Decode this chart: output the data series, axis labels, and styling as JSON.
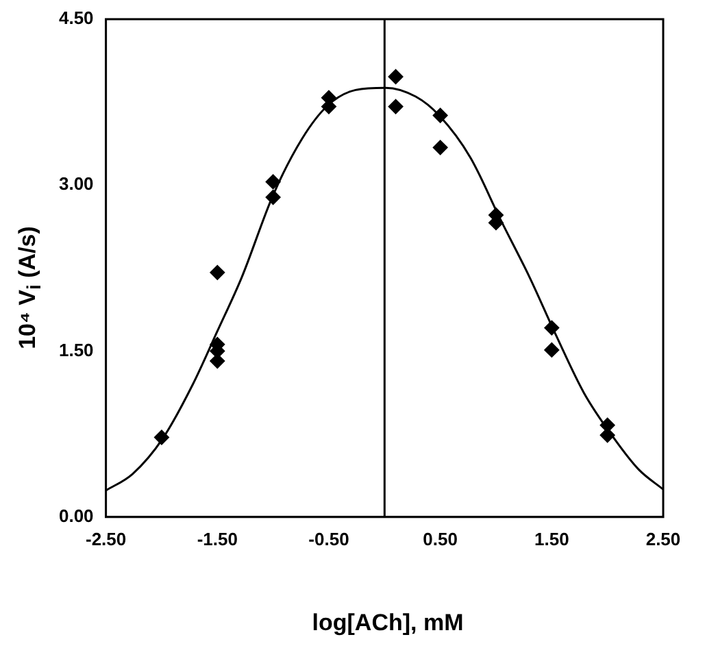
{
  "chart_data": {
    "type": "scatter",
    "xlabel": "log[ACh], mM",
    "ylabel": "10⁴ V$_{i}$ (A/s)",
    "xlim": [
      -2.5,
      2.5
    ],
    "ylim": [
      0,
      4.5
    ],
    "xticks": [
      {
        "value": -2.5,
        "label": "-2.50"
      },
      {
        "value": -1.5,
        "label": "-1.50"
      },
      {
        "value": -0.5,
        "label": "-0.50"
      },
      {
        "value": 0.5,
        "label": "0.50"
      },
      {
        "value": 1.5,
        "label": "1.50"
      },
      {
        "value": 2.5,
        "label": "2.50"
      }
    ],
    "yticks": [
      {
        "value": 0,
        "label": "0.00"
      },
      {
        "value": 1.5,
        "label": "1.50"
      },
      {
        "value": 3,
        "label": "3.00"
      },
      {
        "value": 4.5,
        "label": "4.50"
      }
    ],
    "grid": false,
    "legend": false,
    "ref_lines": [
      {
        "axis": "x",
        "value": 0,
        "color": "#000000"
      }
    ],
    "series": [
      {
        "color": "#000000",
        "marker": "diamond",
        "x": [
          -2,
          -1.5,
          -1.5,
          -1.5,
          -1.5,
          -1,
          -1,
          -0.5,
          -0.5,
          0.1,
          0.1,
          0.5,
          0.5,
          1,
          1,
          1.5,
          1.5,
          2,
          2
        ],
        "values": [
          0.72,
          2.21,
          1.56,
          1.5,
          1.41,
          3.03,
          2.89,
          3.79,
          3.71,
          3.98,
          3.71,
          3.63,
          3.34,
          2.73,
          2.66,
          1.71,
          1.51,
          0.83,
          0.74
        ]
      },
      {
        "type": "line",
        "color": "#000000",
        "marker": "none",
        "line_style": "solid",
        "x": [
          -2.5,
          -2.26,
          -1.99,
          -1.72,
          -1.5,
          -1.28,
          -1,
          -0.74,
          -0.51,
          -0.26,
          0.01,
          0.28,
          0.49,
          0.77,
          1.04,
          1.3,
          1.54,
          1.79,
          2.06,
          2.28,
          2.5
        ],
        "values": [
          0.24,
          0.39,
          0.71,
          1.2,
          1.68,
          2.17,
          2.91,
          3.42,
          3.72,
          3.86,
          3.88,
          3.8,
          3.63,
          3.25,
          2.69,
          2.17,
          1.64,
          1.12,
          0.71,
          0.43,
          0.25
        ]
      }
    ]
  }
}
